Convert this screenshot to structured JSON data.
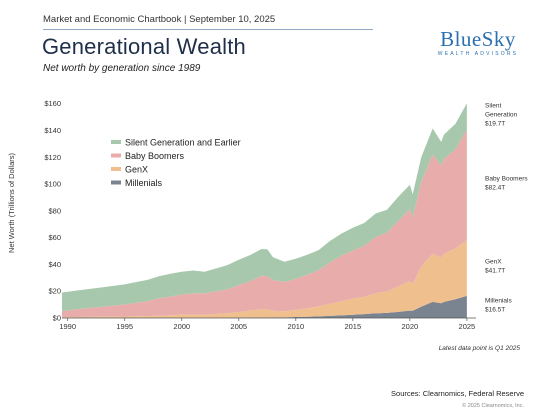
{
  "header": {
    "chartbook": "Market and Economic Chartbook | September 10, 2025",
    "title": "Generational Wealth",
    "subtitle": "Net worth by generation since 1989"
  },
  "logo": {
    "main": "BlueSky",
    "sub": "WEALTH ADVISORS"
  },
  "footer": {
    "footnote": "Latest data point is Q1 2025",
    "sources": "Sources: Clearnomics, Federal Reserve",
    "copyright": "© 2025 Clearnomics, Inc."
  },
  "chart_data": {
    "type": "area",
    "stacked": true,
    "ylabel": "Net Worth (Trillions of Dollars)",
    "xlim": [
      1989.5,
      2025.8
    ],
    "ylim": [
      0,
      165
    ],
    "x_ticks": [
      1990,
      1995,
      2000,
      2005,
      2010,
      2015,
      2020,
      2025
    ],
    "y_ticks": [
      "$0",
      "$20",
      "$40",
      "$60",
      "$80",
      "$100",
      "$120",
      "$140",
      "$160"
    ],
    "y_tick_values": [
      0,
      20,
      40,
      60,
      80,
      100,
      120,
      140,
      160
    ],
    "legend_position": "left",
    "x": [
      1989.5,
      1991,
      1993,
      1995,
      1997,
      1998,
      1999,
      2000,
      2001,
      2002,
      2003,
      2004,
      2005,
      2006,
      2007,
      2007.5,
      2008,
      2009,
      2010,
      2011,
      2012,
      2013,
      2014,
      2015,
      2016,
      2017,
      2018,
      2019,
      2020,
      2020.25,
      2021,
      2022,
      2022.75,
      2023,
      2024,
      2025
    ],
    "series": [
      {
        "name": "Millenials",
        "color": "#7a8491",
        "values": [
          0,
          0,
          0,
          0,
          0,
          0,
          0,
          0,
          0,
          0,
          0,
          0,
          0.1,
          0.2,
          0.3,
          0.3,
          0.4,
          0.5,
          0.7,
          0.9,
          1.2,
          1.6,
          2.0,
          2.4,
          2.9,
          3.5,
          3.8,
          4.6,
          5.5,
          5.4,
          8.5,
          12,
          11,
          12,
          14,
          16.5
        ]
      },
      {
        "name": "GenX",
        "color": "#efc08e",
        "values": [
          0.5,
          0.7,
          0.9,
          1.1,
          1.5,
          1.7,
          2.0,
          2.5,
          2.5,
          2.5,
          3.0,
          3.5,
          4.4,
          5.3,
          6.2,
          6.0,
          5.0,
          4.5,
          5.5,
          6.3,
          7.5,
          9.0,
          10.5,
          12,
          13,
          15,
          16,
          19,
          22,
          20,
          30,
          36,
          34,
          36,
          38,
          41.7
        ]
      },
      {
        "name": "Baby Boomers",
        "color": "#e8adab",
        "values": [
          4.5,
          6.0,
          7.5,
          9,
          11,
          13,
          14,
          15,
          16,
          16,
          17,
          18,
          20,
          22,
          25,
          25,
          23,
          22,
          23,
          25,
          27,
          31,
          34,
          36,
          38,
          42,
          44,
          49,
          54,
          50,
          63,
          74,
          69,
          71,
          74,
          82.4
        ]
      },
      {
        "name": "Silent Generation and Earlier",
        "color": "#a7c8ad",
        "values": [
          14,
          14,
          14.5,
          15,
          16,
          16.5,
          17,
          17,
          17,
          16,
          17,
          18,
          19,
          19.5,
          20,
          20,
          17,
          15,
          15,
          15,
          15,
          16,
          16.5,
          17,
          17,
          17.5,
          17,
          18,
          18,
          17,
          18.5,
          19.5,
          17.5,
          18,
          19,
          19.7
        ]
      }
    ],
    "end_labels": [
      {
        "name": "Silent Generation",
        "value": "$19.7T"
      },
      {
        "name": "Baby Boomers",
        "value": "$82.4T"
      },
      {
        "name": "GenX",
        "value": "$41.7T"
      },
      {
        "name": "Millenials",
        "value": "$16.5T"
      }
    ],
    "legend": [
      {
        "label": "Silent Generation and Earlier",
        "color": "#a7c8ad"
      },
      {
        "label": "Baby Boomers",
        "color": "#e8adab"
      },
      {
        "label": "GenX",
        "color": "#efc08e"
      },
      {
        "label": "Millenials",
        "color": "#7a8491"
      }
    ]
  }
}
